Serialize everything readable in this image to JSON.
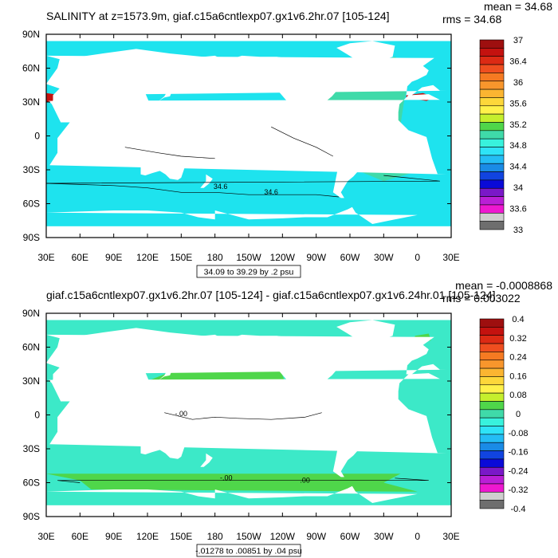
{
  "chart_data": [
    {
      "type": "heatmap",
      "title": "SALINITY at z=1573.9m, giaf.c15a6cntlexp07.gx1v6.2hr.07 [105-124]",
      "stats": {
        "mean_label": "mean = 34.68",
        "rms_label": "rms = 34.68"
      },
      "x_ticks": [
        "30E",
        "60E",
        "90E",
        "120E",
        "150E",
        "180",
        "150W",
        "120W",
        "90W",
        "60W",
        "30W",
        "0",
        "30E"
      ],
      "y_ticks": [
        "90N",
        "60N",
        "30N",
        "0",
        "30S",
        "60S",
        "90S"
      ],
      "contour_labels": [
        "34.6",
        "34.6"
      ],
      "colorbar_levels": [
        "37",
        "36.4",
        "36",
        "35.6",
        "35.2",
        "34.8",
        "34.4",
        "34",
        "33.6",
        "33"
      ],
      "colorbar_colors": [
        "#9e0f0f",
        "#c4120f",
        "#dc2a14",
        "#ef4e1f",
        "#f57a22",
        "#f8962c",
        "#fbb531",
        "#fdd73a",
        "#fff14a",
        "#c5ef2d",
        "#4fd64a",
        "#3fdaa9",
        "#38f2dd",
        "#2ee3f7",
        "#24bdf5",
        "#1a8be6",
        "#1144e0",
        "#0a0ad8",
        "#7a18c8",
        "#ba1fd6",
        "#ee18d0",
        "#cfcfcf",
        "#6e6e6e"
      ],
      "ocean_color": "#1ee3ee",
      "info_box": "34.09 to 39.29 by .2 psu"
    },
    {
      "type": "heatmap",
      "title": "giaf.c15a6cntlexp07.gx1v6.2hr.07 [105-124] - giaf.c15a6cntlexp07.gx1v6.24hr.01 [105-124]",
      "stats": {
        "mean_label": "mean = -0.0008868",
        "rms_label": "rms = 0.003022"
      },
      "x_ticks": [
        "30E",
        "60E",
        "90E",
        "120E",
        "150E",
        "180",
        "150W",
        "120W",
        "90W",
        "60W",
        "30W",
        "0",
        "30E"
      ],
      "y_ticks": [
        "90N",
        "60N",
        "30N",
        "0",
        "30S",
        "60S",
        "90S"
      ],
      "contour_labels": [
        "-.00",
        "-.00",
        ".00"
      ],
      "colorbar_levels": [
        "0.4",
        "0.32",
        "0.24",
        "0.16",
        "0.08",
        "0",
        "-0.08",
        "-0.16",
        "-0.24",
        "-0.32",
        "-0.4"
      ],
      "colorbar_colors": [
        "#9e0f0f",
        "#c4120f",
        "#dc2a14",
        "#ef4e1f",
        "#f57a22",
        "#f8962c",
        "#fbb531",
        "#fdd73a",
        "#fff14a",
        "#c5ef2d",
        "#4fd64a",
        "#3fdaa9",
        "#38f2dd",
        "#2ee3f7",
        "#24bdf5",
        "#1a8be6",
        "#1144e0",
        "#0a0ad8",
        "#7a18c8",
        "#ba1fd6",
        "#ee18d0",
        "#cfcfcf",
        "#6e6e6e"
      ],
      "ocean_color": "#3ce9c8",
      "info_box": "-.01278 to .00851 by .04 psu"
    }
  ]
}
